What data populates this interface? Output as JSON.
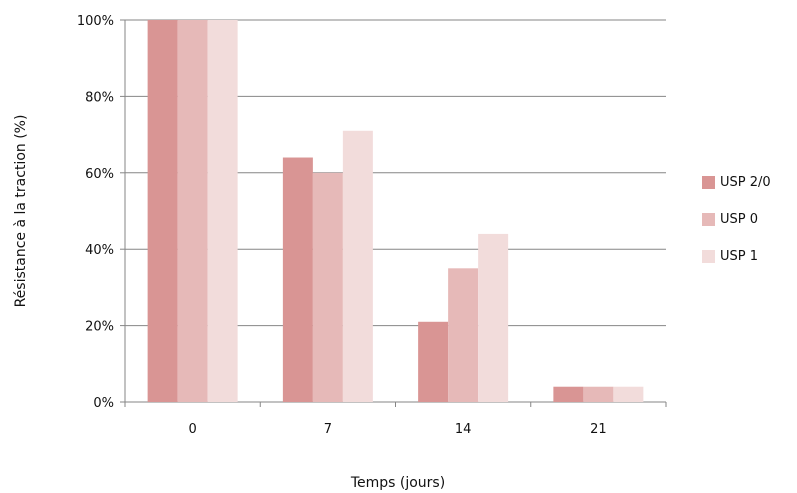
{
  "chart_data": {
    "type": "bar",
    "title": "",
    "xlabel": "Temps (jours)",
    "ylabel": "Résistance à la traction (%)",
    "categories": [
      "0",
      "7",
      "14",
      "21"
    ],
    "series": [
      {
        "name": "USP 2/0",
        "color": "#d99594",
        "values": [
          100,
          64,
          21,
          4
        ]
      },
      {
        "name": "USP 0",
        "color": "#e6b9b8",
        "values": [
          100,
          60,
          35,
          4
        ]
      },
      {
        "name": "USP 1",
        "color": "#f2dcdb",
        "values": [
          100,
          71,
          44,
          4
        ]
      }
    ],
    "ylim": [
      0,
      100
    ],
    "y_ticks": [
      "0%",
      "20%",
      "40%",
      "60%",
      "80%",
      "100%"
    ],
    "grid": true,
    "legend": "right"
  },
  "colors": {
    "gridline": "#868686",
    "axis": "#868686"
  }
}
